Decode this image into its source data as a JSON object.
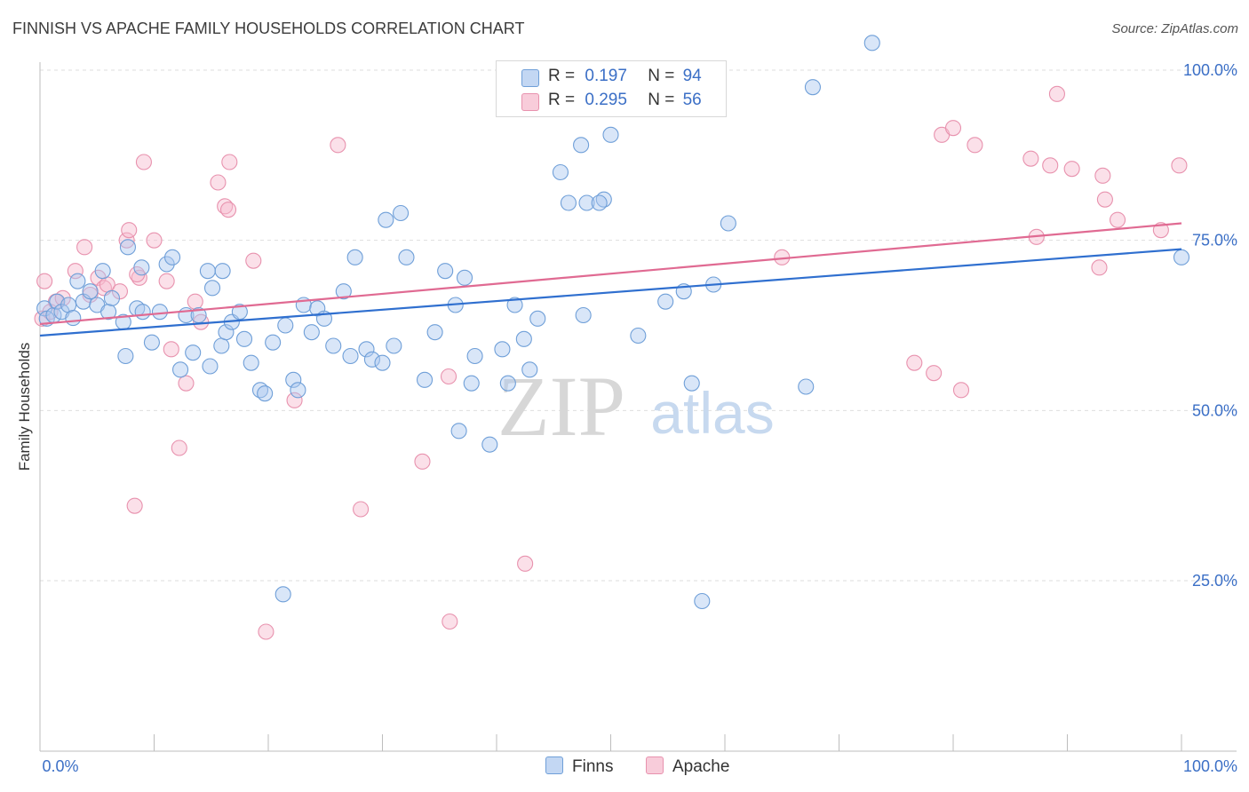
{
  "title": "FINNISH VS APACHE FAMILY HOUSEHOLDS CORRELATION CHART",
  "source": "Source: ZipAtlas.com",
  "watermark": {
    "zip": "ZIP",
    "atlas": "atlas"
  },
  "legend": {
    "finns": {
      "r_label": "R =",
      "r_value": "0.197",
      "n_label": "N =",
      "n_value": "94"
    },
    "apache": {
      "r_label": "R =",
      "r_value": "0.295",
      "n_label": "N =",
      "n_value": "56"
    }
  },
  "chart_data": {
    "type": "scatter",
    "title": "FINNISH VS APACHE FAMILY HOUSEHOLDS CORRELATION CHART",
    "xlabel": "",
    "ylabel": "Family Households",
    "xlim": [
      0,
      100
    ],
    "ylim": [
      0,
      105
    ],
    "x_tick_labels": [
      "0.0%",
      "100.0%"
    ],
    "y_ticks": [
      25,
      50,
      75,
      100
    ],
    "y_tick_labels": [
      "25.0%",
      "50.0%",
      "75.0%",
      "100.0%"
    ],
    "grid": true,
    "legend_position": "top-center",
    "series": [
      {
        "name": "Finns",
        "color": "#8ab4e8",
        "edge": "#6f9fd8",
        "line_color": "#2f6fcf",
        "trend": {
          "x0": 0,
          "y0": 61.0,
          "x1": 100,
          "y1": 73.7
        },
        "points": [
          [
            0.4,
            65
          ],
          [
            0.6,
            63.5
          ],
          [
            1.2,
            64
          ],
          [
            1.5,
            66
          ],
          [
            1.9,
            64.5
          ],
          [
            2.5,
            65.5
          ],
          [
            2.9,
            63.6
          ],
          [
            3.3,
            69
          ],
          [
            3.8,
            66
          ],
          [
            4.4,
            67.5
          ],
          [
            5,
            65.5
          ],
          [
            5.5,
            70.5
          ],
          [
            6,
            64.5
          ],
          [
            6.3,
            66.5
          ],
          [
            7.3,
            63
          ],
          [
            7.5,
            58
          ],
          [
            7.7,
            74
          ],
          [
            8.5,
            65
          ],
          [
            9,
            64.5
          ],
          [
            8.9,
            71
          ],
          [
            9.8,
            60
          ],
          [
            10.5,
            64.5
          ],
          [
            11.1,
            71.5
          ],
          [
            11.6,
            72.5
          ],
          [
            12.3,
            56
          ],
          [
            12.8,
            64
          ],
          [
            13.4,
            58.5
          ],
          [
            13.9,
            64
          ],
          [
            14.7,
            70.5
          ],
          [
            14.9,
            56.5
          ],
          [
            15.1,
            68
          ],
          [
            16,
            70.5
          ],
          [
            15.9,
            59.5
          ],
          [
            16.3,
            61.5
          ],
          [
            16.8,
            63
          ],
          [
            17.5,
            64.5
          ],
          [
            17.9,
            60.5
          ],
          [
            18.5,
            57
          ],
          [
            19.3,
            53
          ],
          [
            19.7,
            52.5
          ],
          [
            20.4,
            60
          ],
          [
            21.5,
            62.5
          ],
          [
            22.2,
            54.5
          ],
          [
            22.6,
            53
          ],
          [
            21.3,
            23
          ],
          [
            23.1,
            65.5
          ],
          [
            23.8,
            61.5
          ],
          [
            24.3,
            65
          ],
          [
            24.9,
            63.5
          ],
          [
            25.7,
            59.5
          ],
          [
            26.6,
            67.5
          ],
          [
            27.2,
            58
          ],
          [
            27.6,
            72.5
          ],
          [
            28.6,
            59
          ],
          [
            29.1,
            57.5
          ],
          [
            30,
            57
          ],
          [
            31,
            59.5
          ],
          [
            31.6,
            79
          ],
          [
            30.3,
            78
          ],
          [
            32.1,
            72.5
          ],
          [
            33.7,
            54.5
          ],
          [
            34.6,
            61.5
          ],
          [
            35.5,
            70.5
          ],
          [
            36.4,
            65.5
          ],
          [
            37.2,
            69.5
          ],
          [
            36.7,
            47
          ],
          [
            37.8,
            54
          ],
          [
            38.1,
            58
          ],
          [
            39.4,
            45
          ],
          [
            40.5,
            59
          ],
          [
            41,
            54
          ],
          [
            41.6,
            65.5
          ],
          [
            42.4,
            60.5
          ],
          [
            42.9,
            56
          ],
          [
            43.6,
            63.5
          ],
          [
            45.6,
            85
          ],
          [
            46.3,
            80.5
          ],
          [
            47.4,
            89
          ],
          [
            47.9,
            80.5
          ],
          [
            47.6,
            64
          ],
          [
            49.4,
            81
          ],
          [
            49,
            80.5
          ],
          [
            50,
            90.5
          ],
          [
            52.4,
            61
          ],
          [
            54.8,
            66
          ],
          [
            56.4,
            67.5
          ],
          [
            58,
            22
          ],
          [
            57.1,
            54
          ],
          [
            59,
            68.5
          ],
          [
            60.3,
            77.5
          ],
          [
            67.1,
            53.5
          ],
          [
            67.7,
            97.5
          ],
          [
            72.9,
            104
          ],
          [
            100,
            72.5
          ]
        ]
      },
      {
        "name": "Apache",
        "color": "#f4b0c6",
        "edge": "#e892ae",
        "line_color": "#e06a92",
        "trend": {
          "x0": 0,
          "y0": 62.7,
          "x1": 100,
          "y1": 77.5
        },
        "points": [
          [
            0.2,
            63.5
          ],
          [
            0.4,
            69
          ],
          [
            0.9,
            64.5
          ],
          [
            1.4,
            66
          ],
          [
            2,
            66.5
          ],
          [
            3.1,
            70.5
          ],
          [
            3.9,
            74
          ],
          [
            4.4,
            67
          ],
          [
            5.1,
            69.5
          ],
          [
            5.6,
            68
          ],
          [
            5.9,
            68.5
          ],
          [
            7,
            67.5
          ],
          [
            7.6,
            75
          ],
          [
            7.8,
            76.5
          ],
          [
            8.3,
            36
          ],
          [
            8.7,
            69.5
          ],
          [
            8.5,
            70
          ],
          [
            9.1,
            86.5
          ],
          [
            10,
            75
          ],
          [
            11.1,
            69
          ],
          [
            11.5,
            59
          ],
          [
            12.2,
            44.5
          ],
          [
            12.8,
            54
          ],
          [
            13.6,
            66
          ],
          [
            14.1,
            63
          ],
          [
            15.6,
            83.5
          ],
          [
            16.2,
            80
          ],
          [
            16.5,
            79.5
          ],
          [
            16.6,
            86.5
          ],
          [
            18.7,
            72
          ],
          [
            19.8,
            17.5
          ],
          [
            22.3,
            51.5
          ],
          [
            26.1,
            89
          ],
          [
            28.1,
            35.5
          ],
          [
            33.5,
            42.5
          ],
          [
            35.8,
            55
          ],
          [
            35.9,
            19
          ],
          [
            42.5,
            27.5
          ],
          [
            65,
            72.5
          ],
          [
            76.6,
            57
          ],
          [
            78.3,
            55.5
          ],
          [
            79,
            90.5
          ],
          [
            80,
            91.5
          ],
          [
            80.7,
            53
          ],
          [
            81.9,
            89
          ],
          [
            86.8,
            87
          ],
          [
            87.3,
            75.5
          ],
          [
            88.5,
            86
          ],
          [
            89.1,
            96.5
          ],
          [
            90.4,
            85.5
          ],
          [
            92.8,
            71
          ],
          [
            93.1,
            84.5
          ],
          [
            93.3,
            81
          ],
          [
            94.4,
            78
          ],
          [
            98.2,
            76.5
          ],
          [
            99.8,
            86
          ]
        ]
      }
    ]
  }
}
